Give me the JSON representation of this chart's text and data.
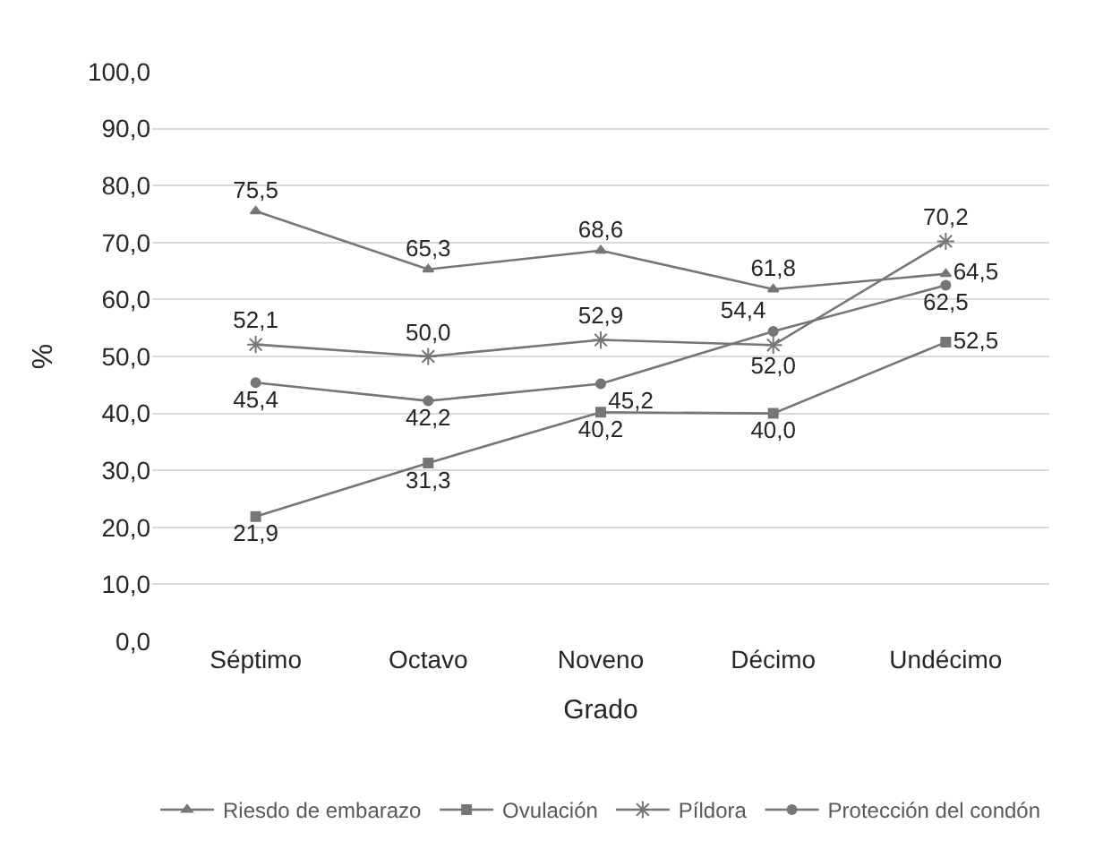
{
  "chart_data": {
    "type": "line",
    "xlabel": "Grado",
    "ylabel": "%",
    "categories": [
      "Séptimo",
      "Octavo",
      "Noveno",
      "Décimo",
      "Undécimo"
    ],
    "series": [
      {
        "name": "Riesdo de embarazo",
        "color": "#767676",
        "marker": "triangle",
        "values": [
          75.5,
          65.3,
          68.6,
          61.8,
          64.5
        ],
        "value_labels": [
          "75,5",
          "65,3",
          "68,6",
          "61,8",
          "64,5"
        ]
      },
      {
        "name": "Ovulación",
        "color": "#767676",
        "marker": "square",
        "values": [
          21.9,
          31.3,
          40.2,
          40.0,
          52.5
        ],
        "value_labels": [
          "21,9",
          "31,3",
          "40,2",
          "40,0",
          "52,5"
        ]
      },
      {
        "name": "Píldora",
        "color": "#767676",
        "marker": "cross",
        "values": [
          52.1,
          50.0,
          52.9,
          52.0,
          70.2
        ],
        "value_labels": [
          "52,1",
          "50,0",
          "52,9",
          "52,0",
          "70,2"
        ]
      },
      {
        "name": "Protección del condón",
        "color": "#767676",
        "marker": "circle",
        "values": [
          45.4,
          42.2,
          45.2,
          54.4,
          62.5
        ],
        "value_labels": [
          "45,4",
          "42,2",
          "45,2",
          "54,4",
          "62,5"
        ]
      }
    ],
    "ylim": [
      0,
      100
    ],
    "yticks": [
      {
        "value": 0,
        "label": "0,0"
      },
      {
        "value": 10,
        "label": "10,0"
      },
      {
        "value": 20,
        "label": "20,0"
      },
      {
        "value": 30,
        "label": "30,0"
      },
      {
        "value": 40,
        "label": "40,0"
      },
      {
        "value": 50,
        "label": "50,0"
      },
      {
        "value": 60,
        "label": "60,0"
      },
      {
        "value": 70,
        "label": "70,0"
      },
      {
        "value": 80,
        "label": "80,0"
      },
      {
        "value": 90,
        "label": "90,0"
      },
      {
        "value": 100,
        "label": "100,0"
      }
    ],
    "grid": "y",
    "legend": "bottom",
    "line_style": "solid"
  }
}
